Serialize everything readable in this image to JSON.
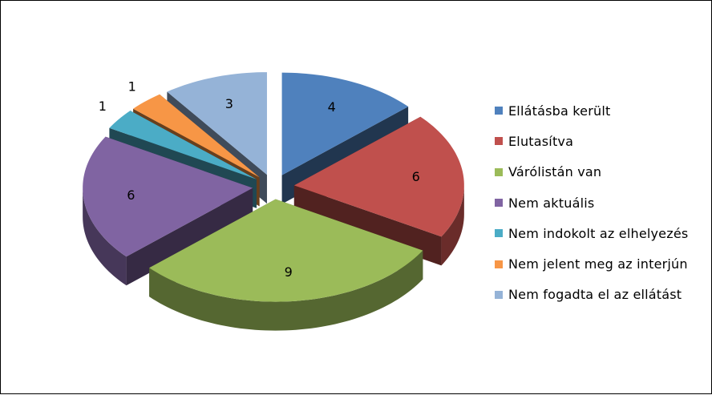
{
  "chart_data": {
    "type": "pie",
    "style": "3d-exploded",
    "title": "",
    "categories": [
      "Ellátásba került",
      "Elutasítva",
      "Várólistán van",
      "Nem aktuális",
      "Nem indokolt az elhelyezés",
      "Nem jelent meg az interjún",
      "Nem fogadta el az ellátást"
    ],
    "values": [
      4,
      6,
      9,
      6,
      1,
      1,
      3
    ],
    "colors": [
      "#4F81BD",
      "#C0504D",
      "#9BBB59",
      "#8064A2",
      "#4BACC6",
      "#F79646",
      "#95B3D7"
    ],
    "legend_position": "right",
    "data_labels": true
  }
}
